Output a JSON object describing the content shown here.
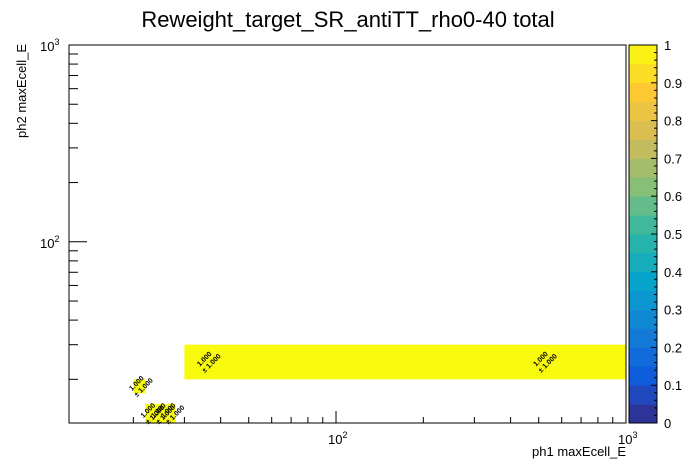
{
  "chart_data": {
    "type": "heatmap",
    "title": "Reweight_target_SR_antiTT_rho0-40 total",
    "xlabel": "ph1 maxEcell_E",
    "ylabel": "ph2 maxEcell_E",
    "x_scale": "log",
    "y_scale": "log",
    "xlim": [
      12,
      1000
    ],
    "ylim": [
      12,
      1000
    ],
    "x_ticks": [
      {
        "value": 100,
        "base": "10",
        "exp": "2"
      },
      {
        "value": 1000,
        "base": "10",
        "exp": "3"
      }
    ],
    "y_ticks": [
      {
        "value": 100,
        "base": "10",
        "exp": "2"
      },
      {
        "value": 1000,
        "base": "10",
        "exp": "3"
      }
    ],
    "zlim": [
      0,
      1
    ],
    "colorbar_ticks": [
      "0",
      "0.1",
      "0.2",
      "0.3",
      "0.4",
      "0.5",
      "0.6",
      "0.7",
      "0.8",
      "0.9",
      "1"
    ],
    "cells": [
      {
        "x0": 30,
        "x1": 1000,
        "y0": 20,
        "y1": 30,
        "value": 1.0,
        "label": "1.000",
        "error": "± 1.000",
        "labels_at_x": [
          36,
          520
        ]
      },
      {
        "x0": 20,
        "x1": 22,
        "y0": 17,
        "y1": 20,
        "value": 1.0,
        "label": "1.000",
        "error": "± 1.000",
        "labels_at_x": [
          21
        ]
      },
      {
        "x0": 22,
        "x1": 24,
        "y0": 12,
        "y1": 15,
        "value": 1.0,
        "label": "1.000",
        "error": "± 1.000",
        "labels_at_x": [
          23
        ]
      },
      {
        "x0": 24,
        "x1": 26,
        "y0": 12,
        "y1": 15,
        "value": 1.0,
        "label": "1.000",
        "error": "± 1.000",
        "labels_at_x": [
          25
        ]
      },
      {
        "x0": 26,
        "x1": 28,
        "y0": 12,
        "y1": 15,
        "value": 1.0,
        "label": "1.000",
        "error": "± 1.000",
        "labels_at_x": [
          27
        ]
      }
    ],
    "palette": [
      "#352a87",
      "#0f5cdd",
      "#1481d6",
      "#06a4ca",
      "#2eb7a4",
      "#87bf77",
      "#d1bb59",
      "#fec832",
      "#f9fb0e"
    ],
    "cell_color": "#f9fb0e"
  }
}
